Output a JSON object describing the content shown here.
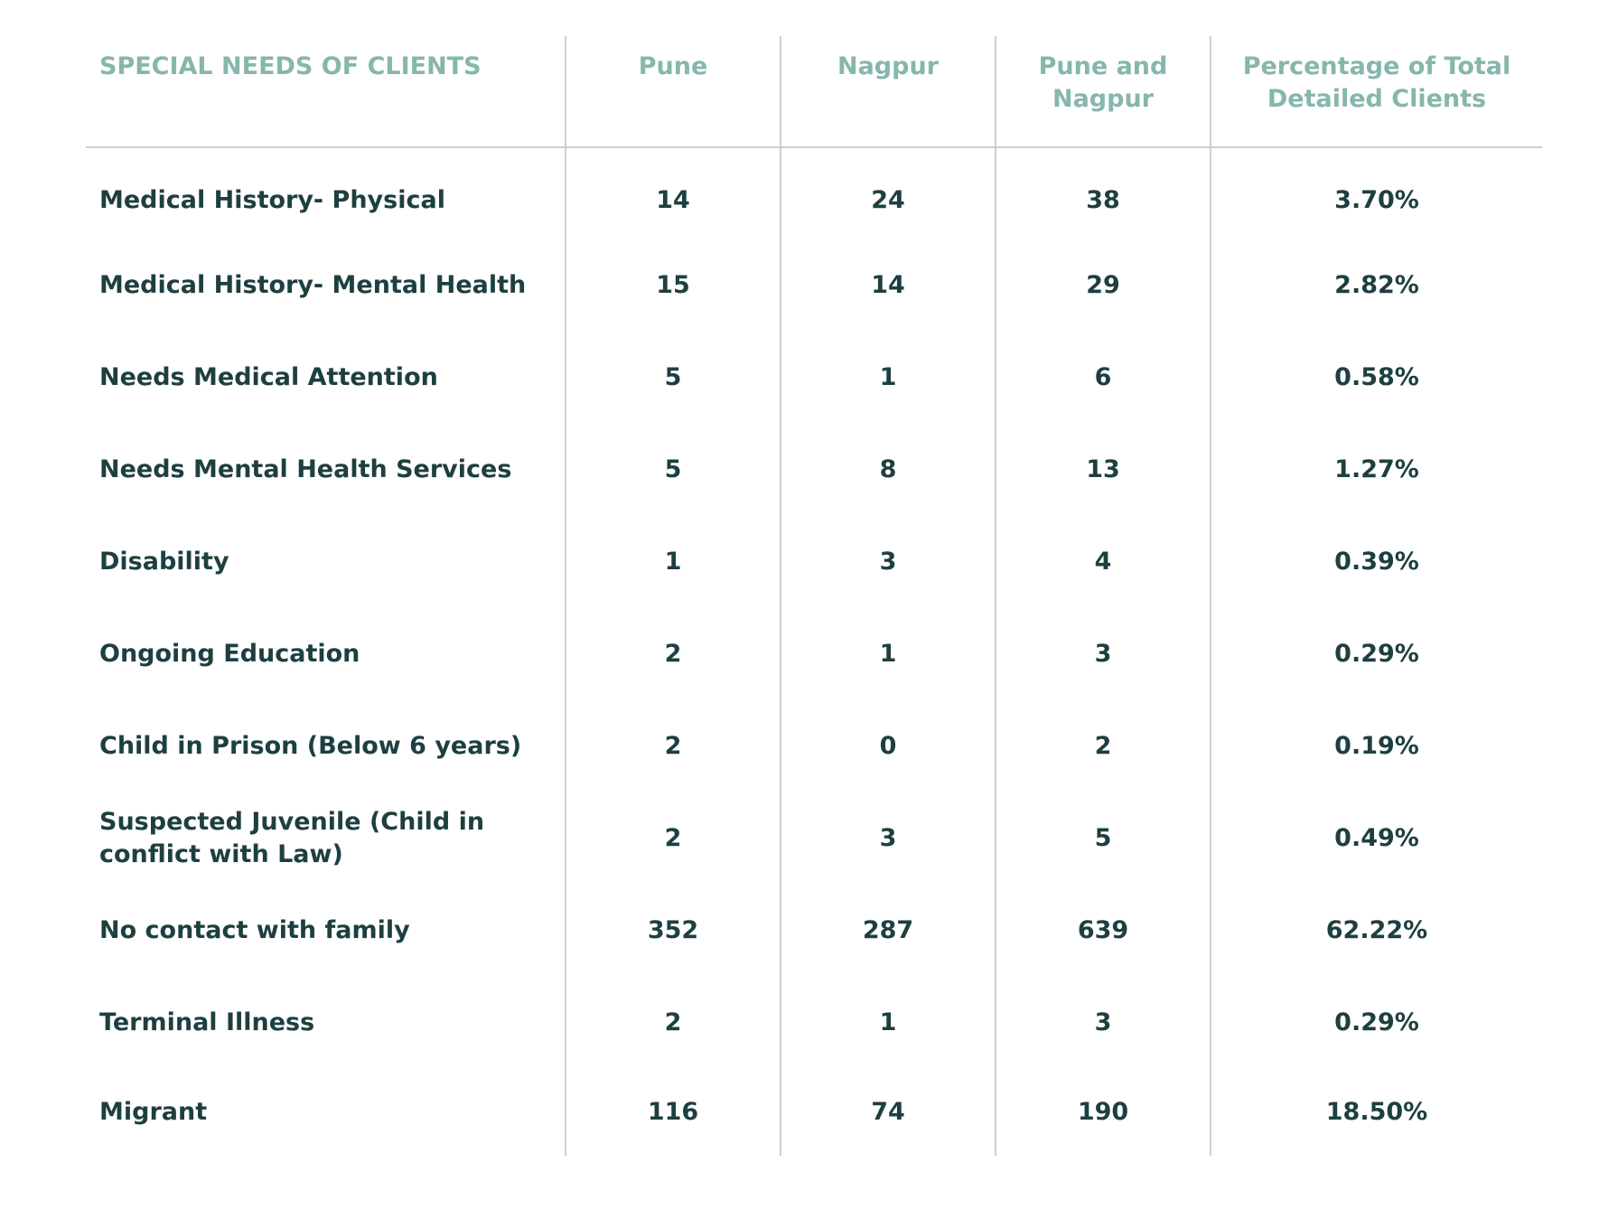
{
  "table": {
    "headers": [
      "SPECIAL NEEDS OF CLIENTS",
      "Pune",
      "Nagpur",
      "Pune and Nagpur",
      "Percentage of Total Detailed Clients"
    ],
    "rows": [
      [
        "Medical History- Physical",
        "14",
        "24",
        "38",
        "3.70%"
      ],
      [
        "Medical History- Mental Health",
        "15",
        "14",
        "29",
        "2.82%"
      ],
      [
        "Needs Medical Attention",
        "5",
        "1",
        "6",
        "0.58%"
      ],
      [
        "Needs Mental Health Services",
        "5",
        "8",
        "13",
        "1.27%"
      ],
      [
        "Disability",
        "1",
        "3",
        "4",
        "0.39%"
      ],
      [
        "Ongoing Education",
        "2",
        "1",
        "3",
        "0.29%"
      ],
      [
        "Child in Prison (Below 6 years)",
        "2",
        "0",
        "2",
        "0.19%"
      ],
      [
        "Suspected Juvenile (Child in conflict with Law)",
        "2",
        "3",
        "5",
        "0.49%"
      ],
      [
        "No contact with family",
        "352",
        "287",
        "639",
        "62.22%"
      ],
      [
        "Terminal Illness",
        "2",
        "1",
        "3",
        "0.29%"
      ],
      [
        "Migrant",
        "116",
        "74",
        "190",
        "18.50%"
      ]
    ]
  },
  "colors": {
    "header_text": "#86b6ac",
    "body_text": "#1e3f3f",
    "rule": "#cfcfcf"
  }
}
